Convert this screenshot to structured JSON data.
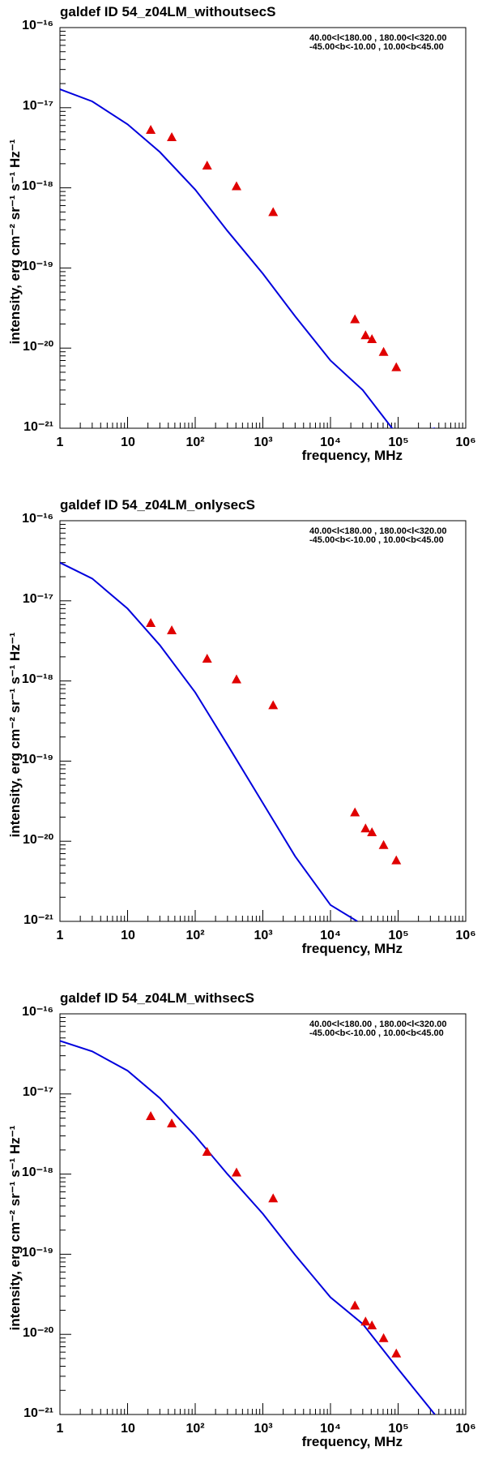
{
  "figure": {
    "region_line1": "40.00<l<180.00 , 180.00<l<320.00",
    "region_line2": "-45.00<b<-10.00 , 10.00<b<45.00",
    "ylabel": "intensity, erg cm⁻² sr⁻¹ s⁻¹ Hz⁻¹",
    "xlabel": "frequency, MHz",
    "x_tick_labels": [
      "1",
      "10",
      "10²",
      "10³",
      "10⁴",
      "10⁵",
      "10⁶"
    ],
    "y_tick_labels": [
      "10⁻²¹",
      "10⁻²⁰",
      "10⁻¹⁹",
      "10⁻¹⁸",
      "10⁻¹⁷",
      "10⁻¹⁶"
    ],
    "colors": {
      "model": "#0000dd",
      "data": "#e00000"
    }
  },
  "chart_data": [
    {
      "type": "scatter",
      "title": "galdef ID 54_z04LM_withoutsecS",
      "xscale": "log",
      "yscale": "log",
      "xlim": [
        1,
        1000000
      ],
      "ylim": [
        1e-21,
        1e-16
      ],
      "legend": "none",
      "series": [
        {
          "name": "model",
          "type": "line",
          "x": [
            1,
            3,
            10,
            30,
            100,
            300,
            1000,
            3000,
            10000,
            30000,
            100000,
            350000
          ],
          "y": [
            1.7e-17,
            1.2e-17,
            6.2e-18,
            2.8e-18,
            9.5e-19,
            2.9e-19,
            8.5e-20,
            2.5e-20,
            7e-21,
            3e-21,
            8e-22,
            1e-21
          ]
        },
        {
          "name": "data",
          "type": "scatter",
          "marker": "triangle",
          "x": [
            22,
            45,
            150,
            408,
            1420,
            23000,
            33000,
            41000,
            61000,
            94000
          ],
          "y": [
            5.3e-18,
            4.3e-18,
            1.9e-18,
            1.05e-18,
            5e-19,
            2.3e-20,
            1.45e-20,
            1.3e-20,
            9e-21,
            5.8e-21
          ]
        }
      ]
    },
    {
      "type": "scatter",
      "title": "galdef ID 54_z04LM_onlysecS",
      "xscale": "log",
      "yscale": "log",
      "xlim": [
        1,
        1000000
      ],
      "ylim": [
        1e-21,
        1e-16
      ],
      "legend": "none",
      "series": [
        {
          "name": "model",
          "type": "line",
          "x": [
            1,
            3,
            10,
            30,
            100,
            300,
            1000,
            3000,
            10000,
            25000
          ],
          "y": [
            3e-17,
            1.9e-17,
            8e-18,
            2.8e-18,
            7.2e-19,
            1.6e-19,
            3e-20,
            6.5e-21,
            1.6e-21,
            1e-21
          ]
        },
        {
          "name": "data",
          "type": "scatter",
          "marker": "triangle",
          "x": [
            22,
            45,
            150,
            408,
            1420,
            23000,
            33000,
            41000,
            61000,
            94000
          ],
          "y": [
            5.3e-18,
            4.3e-18,
            1.9e-18,
            1.05e-18,
            5e-19,
            2.3e-20,
            1.45e-20,
            1.3e-20,
            9e-21,
            5.8e-21
          ]
        }
      ]
    },
    {
      "type": "scatter",
      "title": "galdef ID 54_z04LM_withsecS",
      "xscale": "log",
      "yscale": "log",
      "xlim": [
        1,
        1000000
      ],
      "ylim": [
        1e-21,
        1e-16
      ],
      "legend": "none",
      "series": [
        {
          "name": "model",
          "type": "line",
          "x": [
            1,
            3,
            10,
            30,
            100,
            300,
            1000,
            3000,
            10000,
            30000,
            100000,
            350000
          ],
          "y": [
            4.6e-17,
            3.4e-17,
            1.95e-17,
            8.9e-18,
            3e-18,
            1e-18,
            3.2e-19,
            9.8e-20,
            2.9e-20,
            1.35e-20,
            3.7e-21,
            1e-21
          ]
        },
        {
          "name": "data",
          "type": "scatter",
          "marker": "triangle",
          "x": [
            22,
            45,
            150,
            408,
            1420,
            23000,
            33000,
            41000,
            61000,
            94000
          ],
          "y": [
            5.3e-18,
            4.3e-18,
            1.9e-18,
            1.05e-18,
            5e-19,
            2.3e-20,
            1.45e-20,
            1.3e-20,
            9e-21,
            5.8e-21
          ]
        }
      ]
    }
  ]
}
